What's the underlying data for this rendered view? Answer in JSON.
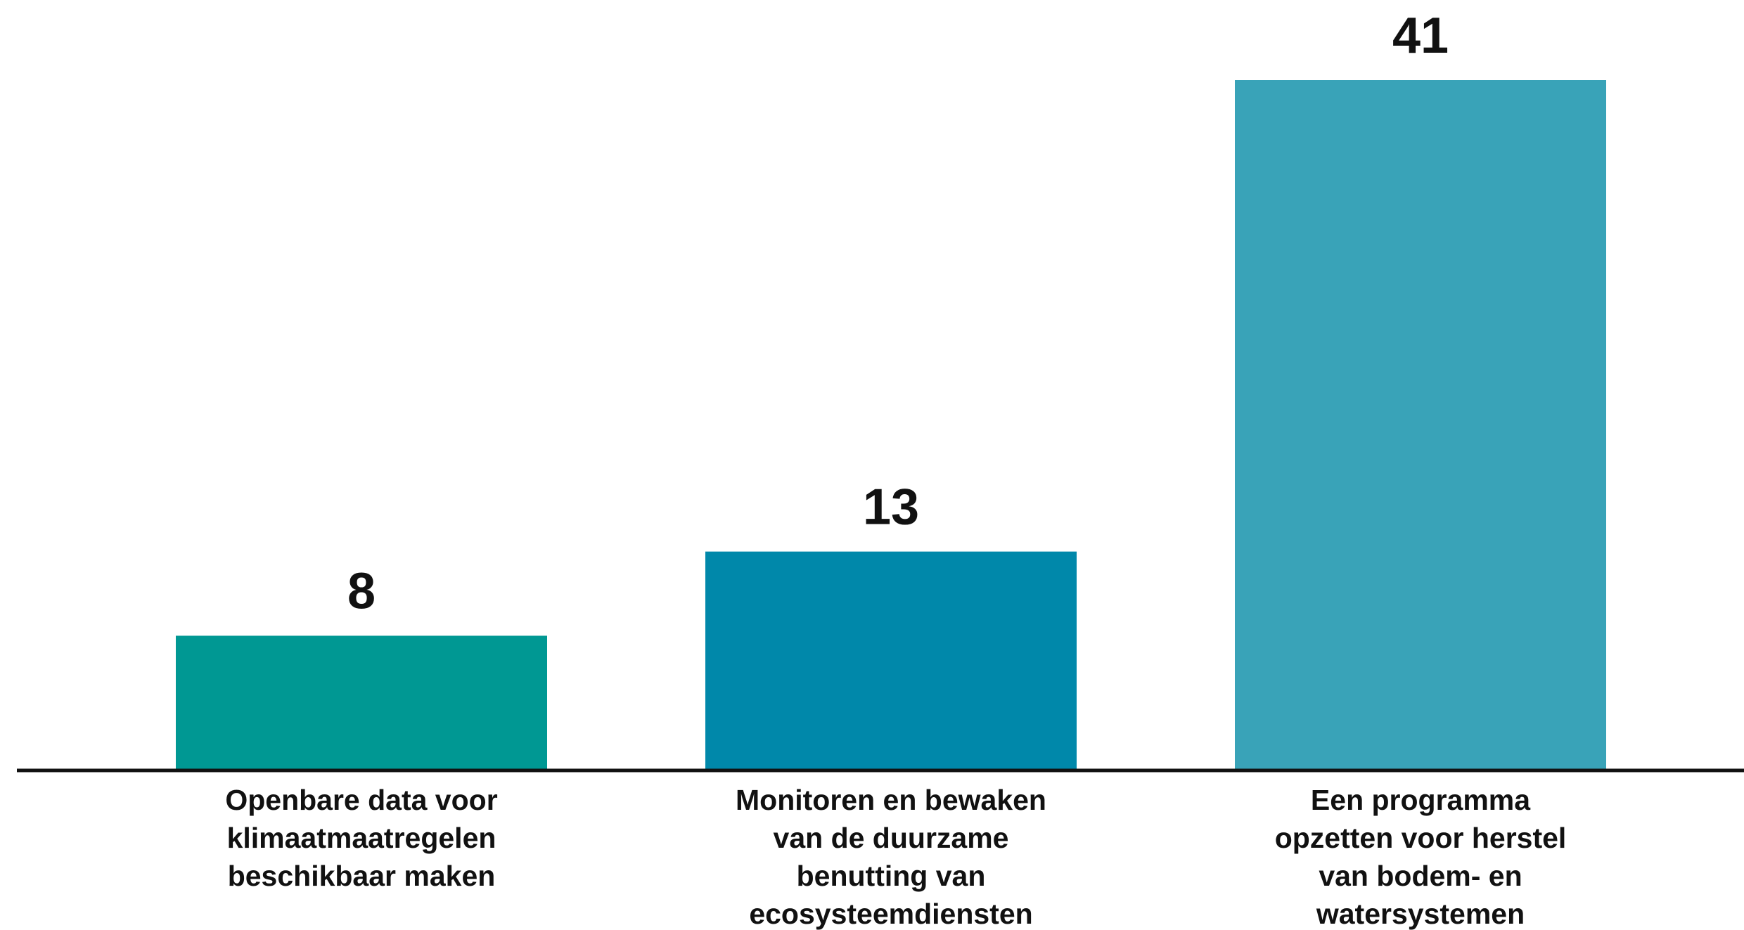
{
  "chart_data": {
    "type": "bar",
    "categories": [
      [
        "Openbare data voor",
        "klimaatmaatregelen",
        "beschikbaar maken"
      ],
      [
        "Monitoren en bewaken",
        "van de duurzame",
        "benutting van",
        "ecosysteemdiensten"
      ],
      [
        "Een programma",
        "opzetten voor herstel",
        "van bodem- en",
        "watersystemen"
      ]
    ],
    "values": [
      8,
      13,
      41
    ],
    "colors": [
      "#009893",
      "#0088aa",
      "#39a3b8"
    ]
  }
}
